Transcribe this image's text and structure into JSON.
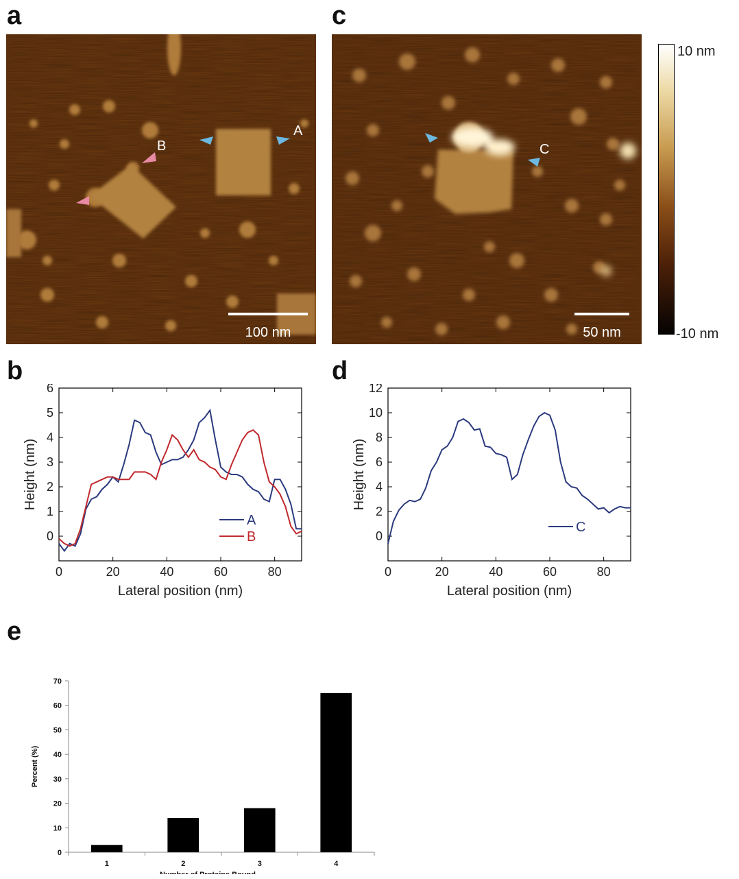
{
  "panels": {
    "a": {
      "letter": "a",
      "scalebar": "100 nm",
      "arrow_labels": {
        "A": "A",
        "B": "B"
      }
    },
    "c": {
      "letter": "c",
      "scalebar": "50 nm",
      "arrow_labels": {
        "C": "C"
      }
    },
    "b": {
      "letter": "b"
    },
    "d": {
      "letter": "d"
    },
    "e": {
      "letter": "e"
    }
  },
  "colorbar": {
    "top_label": "10 nm",
    "bottom_label": "-10 nm",
    "max": 10,
    "min": -10
  },
  "chart_data": [
    {
      "id": "b",
      "type": "line",
      "xlabel": "Lateral position (nm)",
      "ylabel": "Height (nm)",
      "xlim": [
        0,
        90
      ],
      "ylim": [
        -1,
        6
      ],
      "xticks": [
        0,
        20,
        40,
        60,
        80
      ],
      "yticks": [
        0,
        1,
        2,
        3,
        4,
        5,
        6
      ],
      "legend_placement": "bottom-right",
      "series": [
        {
          "name": "A",
          "color": "#2b3a7e",
          "x": [
            0,
            2,
            4,
            6,
            8,
            10,
            12,
            14,
            16,
            18,
            20,
            22,
            24,
            26,
            28,
            30,
            32,
            34,
            36,
            38,
            40,
            42,
            44,
            46,
            48,
            50,
            52,
            54,
            56,
            58,
            60,
            62,
            64,
            66,
            68,
            70,
            72,
            74,
            76,
            78,
            80,
            82,
            84,
            86,
            88,
            90
          ],
          "y": [
            -0.3,
            -0.6,
            -0.3,
            -0.4,
            0.1,
            1.1,
            1.5,
            1.6,
            1.9,
            2.1,
            2.4,
            2.2,
            2.9,
            3.7,
            4.7,
            4.6,
            4.2,
            4.1,
            3.4,
            2.9,
            3.0,
            3.1,
            3.1,
            3.2,
            3.5,
            3.9,
            4.6,
            4.8,
            5.1,
            3.9,
            2.8,
            2.6,
            2.5,
            2.5,
            2.4,
            2.1,
            1.9,
            1.8,
            1.5,
            1.4,
            2.3,
            2.3,
            1.9,
            1.3,
            0.3,
            0.3
          ]
        },
        {
          "name": "B",
          "color": "#c0282d",
          "x": [
            0,
            2,
            4,
            6,
            8,
            10,
            12,
            14,
            16,
            18,
            20,
            22,
            24,
            26,
            28,
            30,
            32,
            34,
            36,
            38,
            40,
            42,
            44,
            46,
            48,
            50,
            52,
            54,
            56,
            58,
            60,
            62,
            64,
            66,
            68,
            70,
            72,
            74,
            76,
            78,
            80,
            82,
            84,
            86,
            88,
            90
          ],
          "y": [
            -0.1,
            -0.3,
            -0.4,
            -0.3,
            0.3,
            1.2,
            2.1,
            2.2,
            2.3,
            2.4,
            2.4,
            2.3,
            2.3,
            2.3,
            2.6,
            2.6,
            2.6,
            2.5,
            2.3,
            3.0,
            3.5,
            4.1,
            3.9,
            3.5,
            3.2,
            3.5,
            3.1,
            3.0,
            2.8,
            2.7,
            2.4,
            2.3,
            2.9,
            3.4,
            3.9,
            4.2,
            4.3,
            4.1,
            3.0,
            2.2,
            2.0,
            1.7,
            1.2,
            0.4,
            0.1,
            0.2
          ]
        }
      ]
    },
    {
      "id": "d",
      "type": "line",
      "xlabel": "Lateral position (nm)",
      "ylabel": "Height (nm)",
      "xlim": [
        0,
        90
      ],
      "ylim": [
        -2,
        12
      ],
      "xticks": [
        0,
        20,
        40,
        60,
        80
      ],
      "yticks": [
        0,
        2,
        4,
        6,
        8,
        10,
        12
      ],
      "legend_placement": "bottom-right",
      "series": [
        {
          "name": "C",
          "color": "#2b3a7e",
          "x": [
            0,
            2,
            4,
            6,
            8,
            10,
            12,
            14,
            16,
            18,
            20,
            22,
            24,
            26,
            28,
            30,
            32,
            34,
            36,
            38,
            40,
            42,
            44,
            46,
            48,
            50,
            52,
            54,
            56,
            58,
            60,
            62,
            64,
            66,
            68,
            70,
            72,
            74,
            76,
            78,
            80,
            82,
            84,
            86,
            88,
            90
          ],
          "y": [
            -0.6,
            1.2,
            2.1,
            2.6,
            2.9,
            2.8,
            3.0,
            3.9,
            5.3,
            6.0,
            7.0,
            7.3,
            8.0,
            9.3,
            9.5,
            9.2,
            8.6,
            8.7,
            7.3,
            7.2,
            6.7,
            6.6,
            6.4,
            4.6,
            5.0,
            6.6,
            7.8,
            8.9,
            9.7,
            10.0,
            9.8,
            8.6,
            6.0,
            4.4,
            4.0,
            3.9,
            3.3,
            3.0,
            2.6,
            2.2,
            2.3,
            1.9,
            2.2,
            2.4,
            2.3,
            2.3
          ]
        }
      ]
    },
    {
      "id": "e",
      "type": "bar",
      "xlabel": "Number of Proteins Bound",
      "ylabel": "Percent (%)",
      "categories": [
        "1",
        "2",
        "3",
        "4"
      ],
      "values": [
        3,
        14,
        18,
        65
      ],
      "ylim": [
        0,
        70
      ],
      "yticks": [
        0,
        10,
        20,
        30,
        40,
        50,
        60,
        70
      ],
      "bar_color": "#000000"
    }
  ]
}
